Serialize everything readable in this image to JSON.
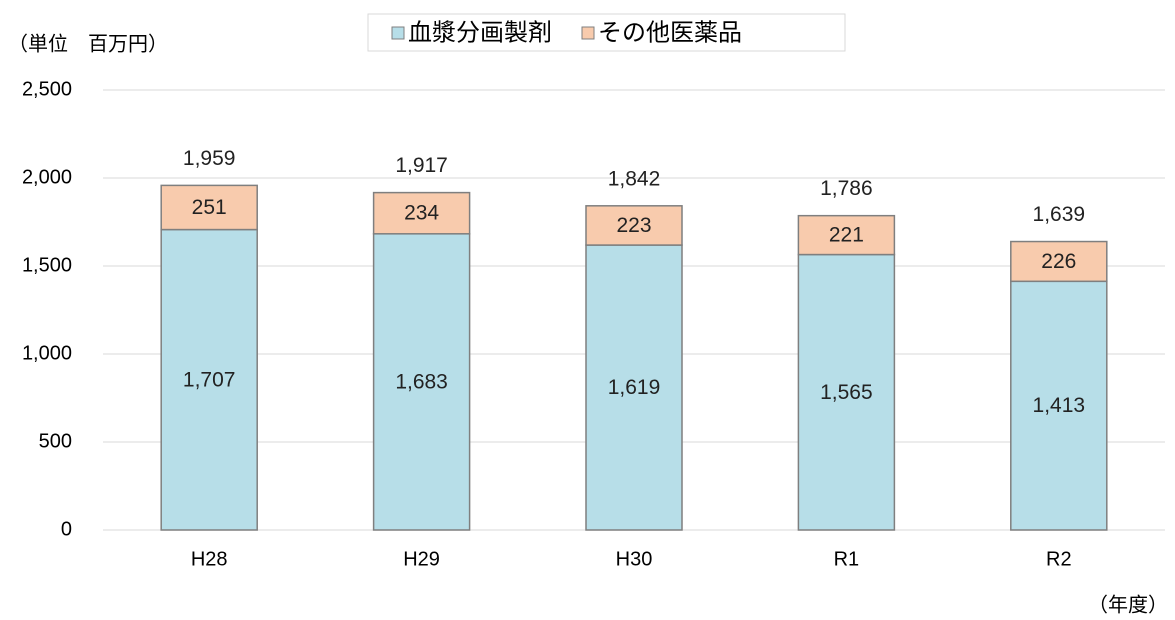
{
  "chart_data": {
    "type": "stacked-bar",
    "unit_label": "（単位　百万円）",
    "x_label": "（年度）",
    "categories": [
      "H28",
      "H29",
      "H30",
      "R1",
      "R2"
    ],
    "series": [
      {
        "name": "血漿分画製剤",
        "color": "#b7dee8",
        "values": [
          1707,
          1683,
          1619,
          1565,
          1413
        ],
        "value_labels": [
          "1,707",
          "1,683",
          "1,619",
          "1,565",
          "1,413"
        ]
      },
      {
        "name": "その他医薬品",
        "color": "#f8cbad",
        "values": [
          251,
          234,
          223,
          221,
          226
        ]
      }
    ],
    "totals": [
      1959,
      1917,
      1842,
      1786,
      1639
    ],
    "total_labels": [
      "1,959",
      "1,917",
      "1,842",
      "1,786",
      "1,639"
    ],
    "ylim": [
      0,
      2500
    ],
    "yticks": [
      0,
      500,
      {
        "value": 1000,
        "label": "1,000"
      },
      {
        "value": 1500,
        "label": "1,500"
      },
      {
        "value": 2000,
        "label": "2,000"
      },
      {
        "value": 2500,
        "label": "2,500"
      }
    ],
    "grid": true
  }
}
